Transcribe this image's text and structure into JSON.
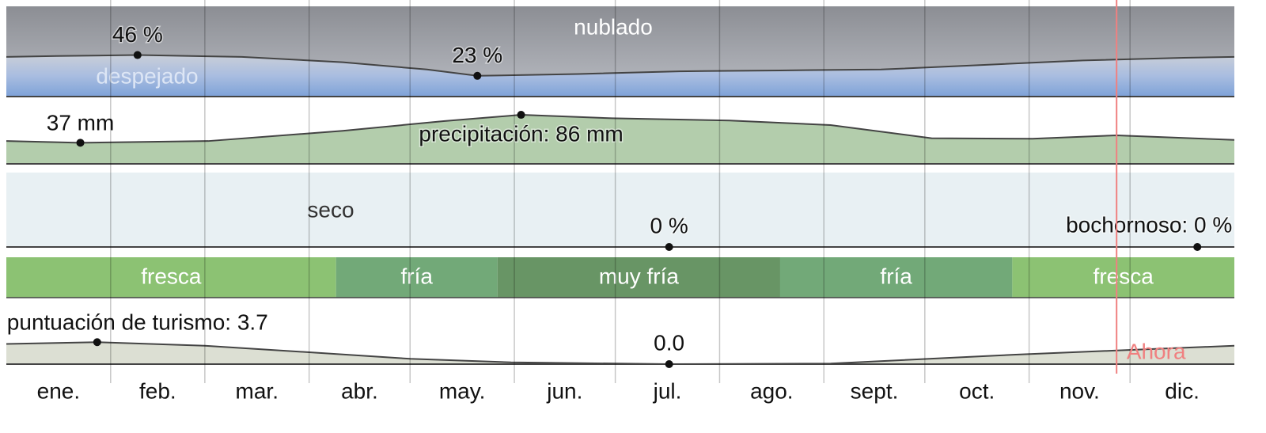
{
  "chart_data": {
    "type": "panels",
    "xlim": [
      0,
      365
    ],
    "xticks": [
      31,
      59,
      90,
      120,
      151,
      181,
      212,
      243,
      273,
      304,
      334
    ],
    "categories": [
      "ene.",
      "feb.",
      "mar.",
      "abr.",
      "may.",
      "jun.",
      "jul.",
      "ago.",
      "sept.",
      "oct.",
      "nov.",
      "dic."
    ],
    "now": {
      "x": 330,
      "label": "Ahora",
      "color": "#f08080"
    },
    "panels": [
      {
        "type": "cloud",
        "top_label": "nublado",
        "bottom_label": "despejado",
        "ylim": [
          0,
          100
        ],
        "x": [
          0,
          15,
          39,
          70,
          100,
          125,
          140,
          170,
          200,
          230,
          260,
          290,
          320,
          350,
          365
        ],
        "values": [
          44,
          45,
          46,
          44,
          38,
          30,
          23,
          25,
          28,
          29,
          30,
          35,
          40,
          43,
          44
        ],
        "annotations": [
          {
            "x": 39,
            "value": 46,
            "label": "46 %"
          },
          {
            "x": 140,
            "value": 23,
            "label": "23 %"
          }
        ]
      },
      {
        "type": "area",
        "color": "#b3cdac",
        "ylim": [
          0,
          118
        ],
        "x": [
          0,
          22,
          60,
          100,
          130,
          153,
          180,
          215,
          245,
          275,
          305,
          330,
          365
        ],
        "values": [
          40,
          37,
          40,
          58,
          75,
          86,
          80,
          76,
          68,
          45,
          44,
          50,
          42
        ],
        "annotations": [
          {
            "x": 22,
            "value": 37,
            "label": "37 mm"
          },
          {
            "x": 153,
            "value": 86,
            "label": "precipitación: 86 mm"
          }
        ]
      },
      {
        "type": "humidity",
        "label": "seco",
        "color": "#e8f0f3",
        "ylim": [
          0,
          100
        ],
        "x": [
          0,
          365
        ],
        "values": [
          0,
          0
        ],
        "annotations": [
          {
            "x": 197,
            "value": 0,
            "label": "0 %"
          },
          {
            "x": 354,
            "value": 0,
            "label": "bochornoso: 0 %"
          }
        ]
      },
      {
        "type": "bands",
        "segments": [
          {
            "start": 0,
            "end": 98,
            "label": "fresca",
            "color": "#8cc273"
          },
          {
            "start": 98,
            "end": 146,
            "label": "fría",
            "color": "#72a978"
          },
          {
            "start": 146,
            "end": 230,
            "label": "muy fría",
            "color": "#689565"
          },
          {
            "start": 230,
            "end": 299,
            "label": "fría",
            "color": "#72a978"
          },
          {
            "start": 299,
            "end": 365,
            "label": "fresca",
            "color": "#8cc273"
          }
        ]
      },
      {
        "type": "area",
        "color": "#dcdfd3",
        "ylim": [
          0,
          10
        ],
        "x": [
          0,
          27,
          59,
          90,
          120,
          150,
          197,
          245,
          300,
          330,
          365
        ],
        "values": [
          3.4,
          3.7,
          3.1,
          2,
          0.9,
          0.3,
          0,
          0.1,
          1.6,
          2.3,
          3.1
        ],
        "annotations": [
          {
            "x": 27,
            "value": 3.7,
            "label": "puntuación de turismo: 3.7"
          },
          {
            "x": 197,
            "value": 0,
            "label": "0.0"
          }
        ]
      }
    ]
  }
}
